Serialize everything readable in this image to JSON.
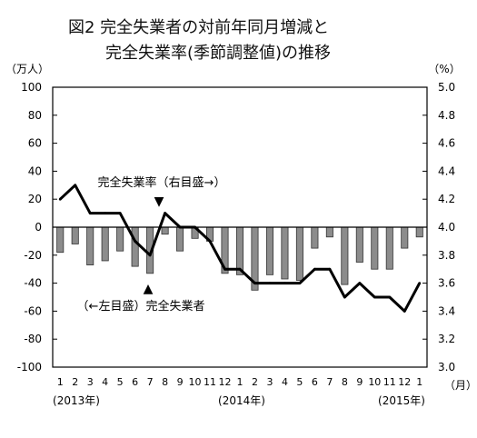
{
  "chart_data": {
    "type": "bar+line",
    "title_line1": "図2 完全失業者の対前年同月増減と",
    "title_line2": "完全失業率(季節調整値)の推移",
    "left_axis_unit": "（万人）",
    "right_axis_unit": "（%）",
    "left_ticks": [
      "100",
      "80",
      "60",
      "40",
      "20",
      "0",
      "-20",
      "-40",
      "-60",
      "-80",
      "-100"
    ],
    "right_ticks": [
      "5.0",
      "4.8",
      "4.6",
      "4.4",
      "4.2",
      "4.0",
      "3.8",
      "3.6",
      "3.4",
      "3.2",
      "3.0"
    ],
    "ylim_left": [
      -100,
      100
    ],
    "ylim_right": [
      3.0,
      5.0
    ],
    "month_labels": [
      "1",
      "2",
      "3",
      "4",
      "5",
      "6",
      "7",
      "8",
      "9",
      "10",
      "11",
      "12",
      "1",
      "2",
      "3",
      "4",
      "5",
      "6",
      "7",
      "8",
      "9",
      "10",
      "11",
      "12",
      "1"
    ],
    "month_unit": "（月）",
    "year_labels": [
      "(2013年)",
      "(2014年)",
      "(2015年)"
    ],
    "series": [
      {
        "name": "完全失業者",
        "axis": "left",
        "type": "bar",
        "values": [
          -18,
          -12,
          -27,
          -24,
          -17,
          -28,
          -33,
          -5,
          -17,
          -8,
          -10,
          -33,
          -34,
          -45,
          -34,
          -37,
          -38,
          -15,
          -7,
          -41,
          -25,
          -30,
          -30,
          -15,
          -7
        ]
      },
      {
        "name": "完全失業率",
        "axis": "right",
        "type": "line",
        "values": [
          4.2,
          4.3,
          4.1,
          4.1,
          4.1,
          3.9,
          3.8,
          4.1,
          4.0,
          4.0,
          3.9,
          3.7,
          3.7,
          3.6,
          3.6,
          3.6,
          3.6,
          3.7,
          3.7,
          3.5,
          3.6,
          3.5,
          3.5,
          3.4,
          3.6
        ]
      }
    ],
    "annotations": {
      "rate_label": "完全失業率（右目盛→）",
      "unemployed_label": "（←左目盛）完全失業者",
      "down_marker": "▼",
      "up_marker": "▲"
    },
    "grid": false,
    "zero_line": true
  }
}
